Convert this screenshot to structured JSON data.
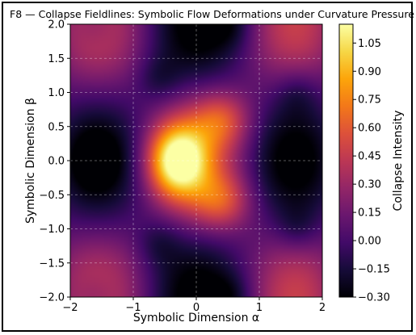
{
  "chart_data": {
    "type": "heatmap",
    "title": "F8 — Collapse Fieldlines: Symbolic Flow Deformations under Curvature Pressure",
    "xlabel": "Symbolic Dimension α",
    "ylabel": "Symbolic Dimension β",
    "xlim": [
      -2,
      2
    ],
    "ylim": [
      -2,
      2
    ],
    "x_ticks": [
      "−2",
      "−1",
      "0",
      "1",
      "2"
    ],
    "y_ticks": [
      "−2.0",
      "−1.5",
      "−1.0",
      "−0.5",
      "0.0",
      "0.5",
      "1.0",
      "1.5",
      "2.0"
    ],
    "grid": true,
    "colormap": "inferno",
    "colorbar": {
      "label": "Collapse Intensity",
      "range": [
        -0.3,
        1.15
      ],
      "ticks": [
        "−0.30",
        "−0.15",
        "0.00",
        "0.15",
        "0.30",
        "0.45",
        "0.60",
        "0.75",
        "0.90",
        "1.05"
      ]
    },
    "peak": {
      "x": -0.3,
      "y": 0.0,
      "value": 1.15
    },
    "lobes": [
      {
        "x": 0.4,
        "y": 0.6
      },
      {
        "x": 0.4,
        "y": -0.6
      }
    ],
    "minima": [
      {
        "x": -1.6,
        "y": 2.0
      },
      {
        "x": 0.55,
        "y": 2.0
      },
      {
        "x": -1.6,
        "y": 0.0
      },
      {
        "x": 1.6,
        "y": 1.0
      },
      {
        "x": 1.6,
        "y": -1.0
      },
      {
        "x": -1.6,
        "y": -2.0
      },
      {
        "x": 0.55,
        "y": -2.0
      },
      {
        "x": -0.6,
        "y": 1.2
      },
      {
        "x": -0.6,
        "y": -1.2
      }
    ]
  }
}
